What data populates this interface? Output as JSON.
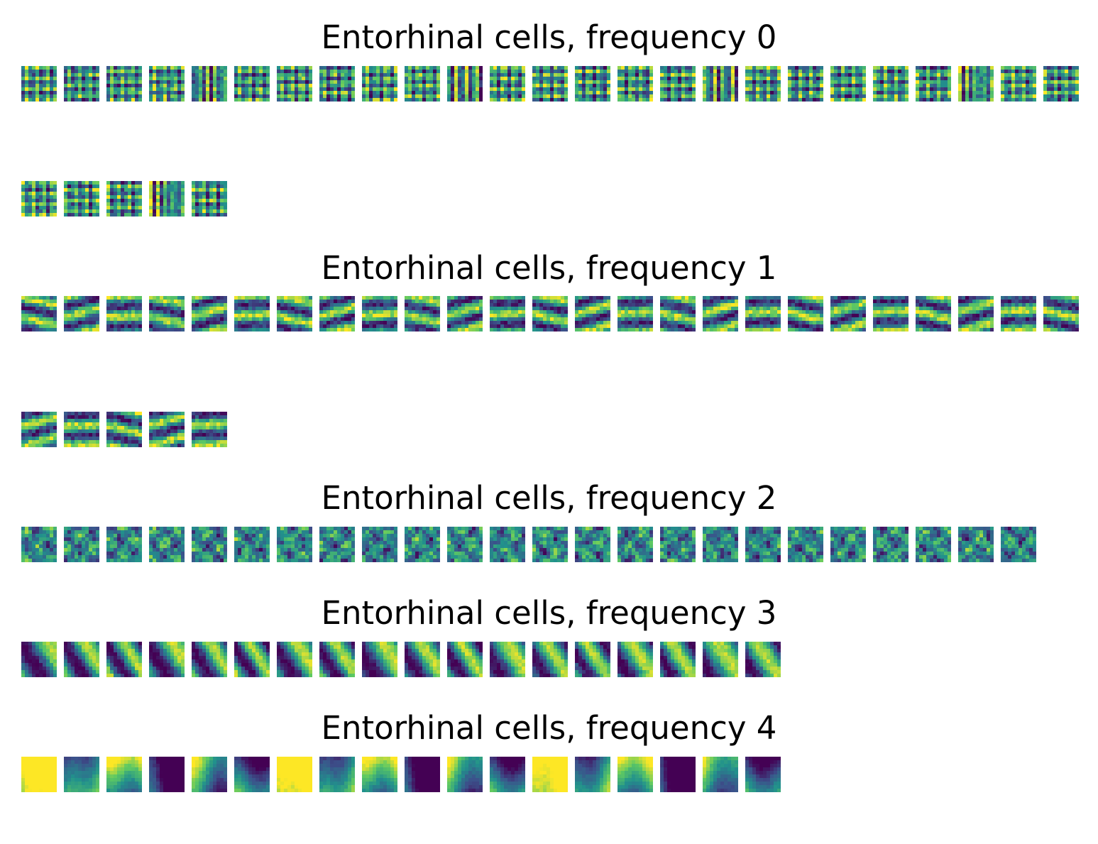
{
  "chart_data": {
    "type": "heatmap",
    "colormap": "viridis",
    "colormap_stops": [
      "#440154",
      "#3b528b",
      "#21918c",
      "#5ec962",
      "#fde725"
    ],
    "axes": "off",
    "panels": [
      {
        "title": "Entorhinal cells, frequency 0",
        "frequency": 0,
        "cell_count": 30,
        "pattern": "checker"
      },
      {
        "title": "Entorhinal cells, frequency 1",
        "frequency": 1,
        "cell_count": 30,
        "pattern": "stripes"
      },
      {
        "title": "Entorhinal cells, frequency 2",
        "frequency": 2,
        "cell_count": 24,
        "pattern": "blobs"
      },
      {
        "title": "Entorhinal cells, frequency 3",
        "frequency": 3,
        "cell_count": 18,
        "pattern": "diagonal-bands"
      },
      {
        "title": "Entorhinal cells, frequency 4",
        "frequency": 4,
        "cell_count": 18,
        "pattern": "smooth-gradient"
      }
    ]
  }
}
